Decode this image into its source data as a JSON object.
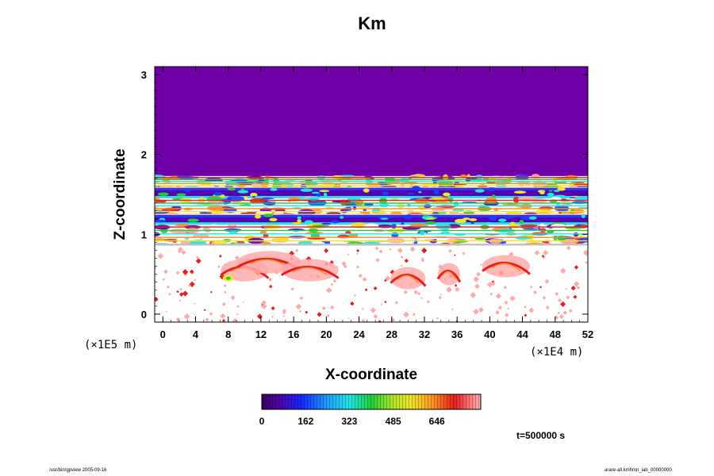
{
  "chart_data": {
    "type": "heatmap",
    "title": "Km",
    "xlabel": "X-coordinate",
    "ylabel": "Z-coordinate",
    "x_unit": "(×1E4 m)",
    "y_unit": "(×1E5 m)",
    "xlim": [
      -1,
      52
    ],
    "ylim": [
      -0.1,
      3.1
    ],
    "x_ticks": [
      0,
      4,
      8,
      12,
      16,
      20,
      24,
      28,
      32,
      36,
      40,
      44,
      48,
      52
    ],
    "y_ticks": [
      0,
      1,
      2,
      3
    ],
    "colorbar": {
      "ticks": [
        0,
        162,
        323,
        485,
        646
      ],
      "range": [
        0,
        808
      ]
    },
    "time_label": "t=500000 s",
    "background_color": "#6f00a8",
    "colors": {
      "background": "#6f00a8",
      "deep_purple": "#5a00b0",
      "blue": "#1e3cff",
      "cyan": "#20e6e6",
      "green": "#28c83c",
      "yellow": "#f0e628",
      "orange": "#ff8a1e",
      "red": "#e61e1e",
      "pink": "#ffaaaa",
      "white": "#ffffff"
    },
    "bands": [
      {
        "z_top": 1.73,
        "z_bottom": 1.58,
        "kind": "mixed"
      },
      {
        "z_top": 1.58,
        "z_bottom": 1.45,
        "kind": "purple"
      },
      {
        "z_top": 1.45,
        "z_bottom": 1.24,
        "kind": "mixed"
      },
      {
        "z_top": 1.24,
        "z_bottom": 1.12,
        "kind": "purple"
      },
      {
        "z_top": 1.12,
        "z_bottom": 0.86,
        "kind": "mixed"
      },
      {
        "z_top": 0.86,
        "z_bottom": -0.1,
        "kind": "light"
      }
    ]
  },
  "footer": {
    "left": "/usr/bin/gpview 2005-09-16",
    "right": "arare-all.kmhmn_iab_00000000"
  }
}
